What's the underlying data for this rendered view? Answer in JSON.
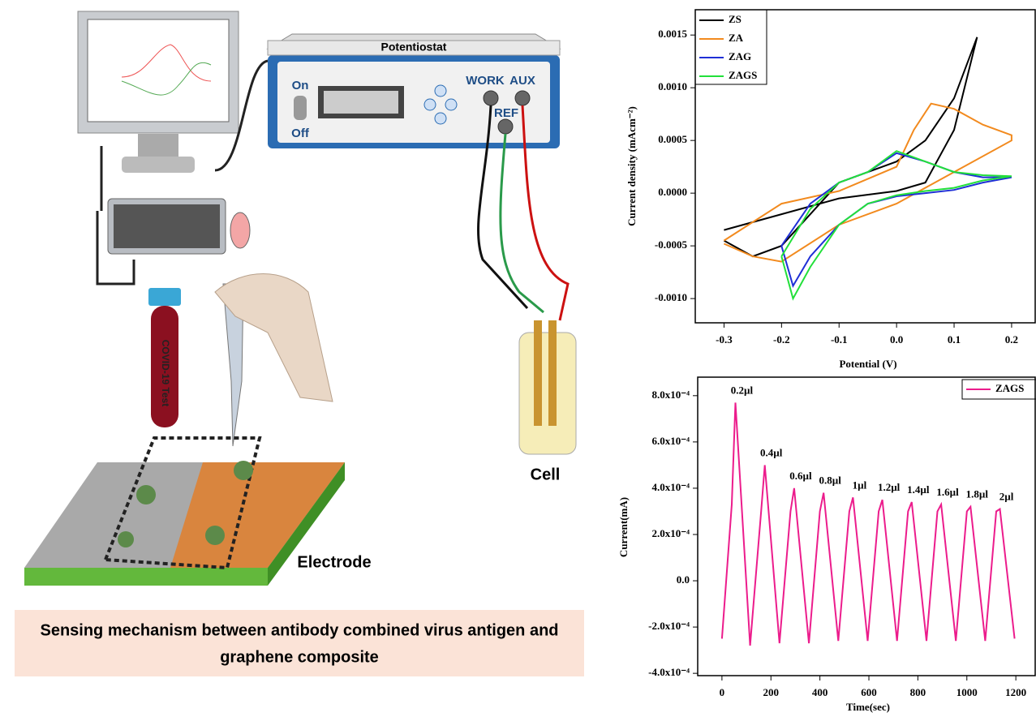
{
  "labels": {
    "potentiostat": "Potentiostat",
    "on": "On",
    "off": "Off",
    "work": "WORK",
    "aux": "AUX",
    "ref": "REF",
    "cell": "Cell",
    "electrode": "Electrode",
    "tube": "COVID-19 Test",
    "caption": [
      "Sensing mechanism between antibody combined virus antigen and",
      "graphene composite"
    ]
  },
  "chart_data": [
    {
      "type": "line",
      "xlabel": "Potential (V)",
      "ylabel": "Current density (mAcm⁻²)",
      "xlim": [
        -0.35,
        0.241
      ],
      "ylim": [
        -0.00123,
        0.00174
      ],
      "xticks": [
        -0.3,
        -0.2,
        -0.1,
        {
          "value": 0,
          "label": "0.0"
        },
        0.1,
        0.2
      ],
      "yticks": [
        {
          "value": -0.001,
          "label": "-0.0010"
        },
        -0.0005,
        {
          "value": 0,
          "label": "0.0000"
        },
        0.0005,
        {
          "value": 0.001,
          "label": "0.0010"
        },
        0.0015
      ],
      "legend": "upper left",
      "series": [
        {
          "name": "ZS",
          "color": "#000000",
          "x": [
            -0.3,
            -0.2,
            -0.1,
            0,
            0.05,
            0.1,
            0.14,
            0.1,
            0.05,
            0,
            -0.1,
            -0.15,
            -0.2,
            -0.25,
            -0.3
          ],
          "values": [
            -0.00035,
            -0.0002,
            -5e-05,
            2e-05,
            0.0001,
            0.0006,
            0.00148,
            0.0009,
            0.0005,
            0.0003,
            0.0001,
            -0.0002,
            -0.0005,
            -0.0006,
            -0.00045
          ]
        },
        {
          "name": "ZA",
          "color": "#f28a1e",
          "x": [
            -0.3,
            -0.2,
            -0.1,
            0,
            0.03,
            0.06,
            0.1,
            0.15,
            0.2,
            0.2,
            0.1,
            0,
            -0.1,
            -0.2,
            -0.25,
            -0.3
          ],
          "values": [
            -0.00045,
            -0.0001,
            2e-05,
            0.00025,
            0.0006,
            0.00085,
            0.0008,
            0.00065,
            0.00055,
            0.0005,
            0.0002,
            -0.0001,
            -0.0003,
            -0.00065,
            -0.0006,
            -0.00048
          ]
        },
        {
          "name": "ZAG",
          "color": "#1f2fd6",
          "x": [
            -0.2,
            -0.15,
            -0.1,
            -0.05,
            0,
            0.05,
            0.1,
            0.15,
            0.2,
            0.15,
            0.1,
            0.05,
            0,
            -0.05,
            -0.1,
            -0.15,
            -0.18,
            -0.2
          ],
          "values": [
            -0.0005,
            -0.0001,
            0.0001,
            0.0002,
            0.00038,
            0.0003,
            0.0002,
            0.00015,
            0.00015,
            0.0001,
            3e-05,
            0,
            -3e-05,
            -0.0001,
            -0.0003,
            -0.0006,
            -0.00088,
            -0.0005
          ]
        },
        {
          "name": "ZAGS",
          "color": "#22e03a",
          "x": [
            -0.2,
            -0.15,
            -0.1,
            -0.05,
            0,
            0.05,
            0.1,
            0.15,
            0.2,
            0.15,
            0.1,
            0.05,
            0,
            -0.05,
            -0.1,
            -0.15,
            -0.18,
            -0.2
          ],
          "values": [
            -0.0006,
            -0.00015,
            0.0001,
            0.0002,
            0.0004,
            0.0003,
            0.0002,
            0.00017,
            0.00016,
            0.00012,
            5e-05,
            2e-05,
            -2e-05,
            -0.0001,
            -0.0003,
            -0.0007,
            -0.001,
            -0.0006
          ]
        }
      ]
    },
    {
      "type": "line",
      "xlabel": "Time(sec)",
      "ylabel": "Current(mA)",
      "xlim": [
        -99,
        1279
      ],
      "ylim": [
        -0.00041,
        0.00088
      ],
      "xticks": [
        0,
        200,
        400,
        600,
        800,
        1000,
        1200
      ],
      "yticks": [
        {
          "value": -0.0004,
          "label": "-4.0x10⁻⁴"
        },
        {
          "value": -0.0002,
          "label": "-2.0x10⁻⁴"
        },
        {
          "value": 0,
          "label": "0.0"
        },
        {
          "value": 0.0002,
          "label": "2.0x10⁻⁴"
        },
        {
          "value": 0.0004,
          "label": "4.0x10⁻⁴"
        },
        {
          "value": 0.0006,
          "label": "6.0x10⁻⁴"
        },
        {
          "value": 0.0008,
          "label": "8.0x10⁻⁴"
        }
      ],
      "legend": "upper right",
      "x": [
        0,
        40,
        55,
        115,
        160,
        175,
        235,
        280,
        295,
        355,
        400,
        415,
        475,
        520,
        535,
        595,
        640,
        655,
        715,
        760,
        775,
        835,
        880,
        895,
        955,
        1000,
        1015,
        1075,
        1120,
        1135,
        1195
      ],
      "series": [
        {
          "name": "ZAGS",
          "color": "#ec1c8c",
          "values": [
            -0.00025,
            0.00033,
            0.00077,
            -0.00028,
            0.0003,
            0.0005,
            -0.00027,
            0.0003,
            0.0004,
            -0.00027,
            0.0003,
            0.00038,
            -0.00026,
            0.0003,
            0.00036,
            -0.00026,
            0.0003,
            0.00035,
            -0.00026,
            0.0003,
            0.00034,
            -0.00026,
            0.0003,
            0.00033,
            -0.00026,
            0.0003,
            0.00032,
            -0.00026,
            0.0003,
            0.00031,
            -0.00025
          ]
        }
      ],
      "annotations": [
        "0.2µl",
        "0.4µl",
        "0.6µl",
        "0.8µl",
        "1µl",
        "1.2µl",
        "1.4µl",
        "1.6µl",
        "1.8µl",
        "2µl"
      ]
    }
  ]
}
